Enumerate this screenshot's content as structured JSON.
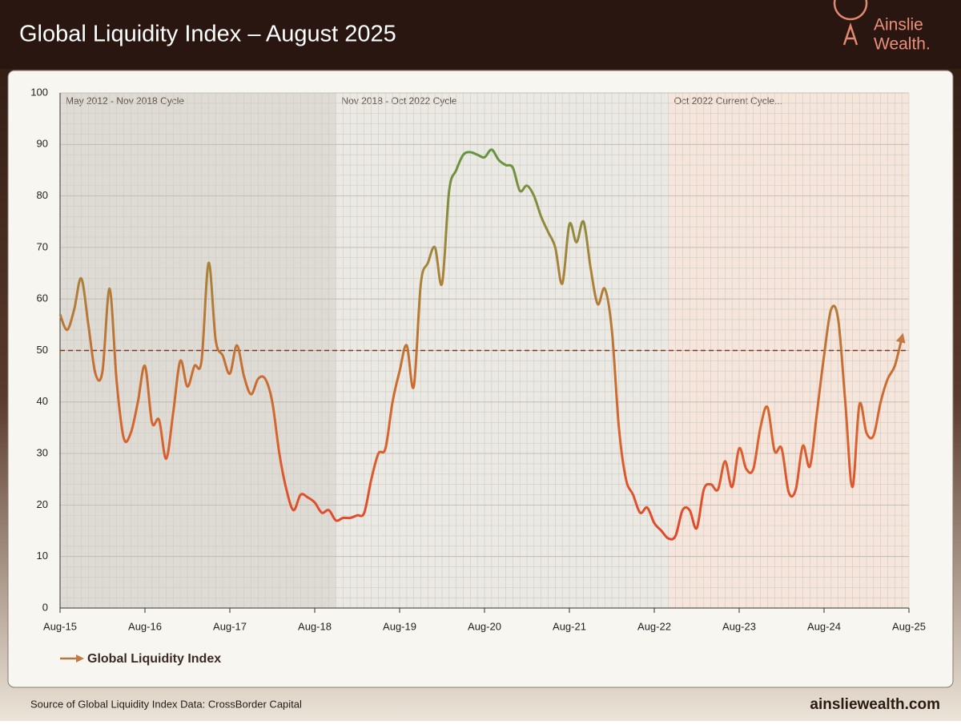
{
  "header": {
    "title": "Global Liquidity Index – August 2025",
    "logo_top": "Ainslie",
    "logo_bottom": "Wealth."
  },
  "chart_data": {
    "type": "line",
    "x": [
      "2015-08",
      "2015-09",
      "2015-10",
      "2015-11",
      "2015-12",
      "2016-01",
      "2016-02",
      "2016-03",
      "2016-04",
      "2016-05",
      "2016-06",
      "2016-07",
      "2016-08",
      "2016-09",
      "2016-10",
      "2016-11",
      "2016-12",
      "2017-01",
      "2017-02",
      "2017-03",
      "2017-04",
      "2017-05",
      "2017-06",
      "2017-07",
      "2017-08",
      "2017-09",
      "2017-10",
      "2017-11",
      "2017-12",
      "2018-01",
      "2018-02",
      "2018-03",
      "2018-04",
      "2018-05",
      "2018-06",
      "2018-07",
      "2018-08",
      "2018-09",
      "2018-10",
      "2018-11",
      "2018-12",
      "2019-01",
      "2019-02",
      "2019-03",
      "2019-04",
      "2019-05",
      "2019-06",
      "2019-07",
      "2019-08",
      "2019-09",
      "2019-10",
      "2019-11",
      "2019-12",
      "2020-01",
      "2020-02",
      "2020-03",
      "2020-04",
      "2020-05",
      "2020-06",
      "2020-07",
      "2020-08",
      "2020-09",
      "2020-10",
      "2020-11",
      "2020-12",
      "2021-01",
      "2021-02",
      "2021-03",
      "2021-04",
      "2021-05",
      "2021-06",
      "2021-07",
      "2021-08",
      "2021-09",
      "2021-10",
      "2021-11",
      "2021-12",
      "2022-01",
      "2022-02",
      "2022-03",
      "2022-04",
      "2022-05",
      "2022-06",
      "2022-07",
      "2022-08",
      "2022-09",
      "2022-10",
      "2022-11",
      "2022-12",
      "2023-01",
      "2023-02",
      "2023-03",
      "2023-04",
      "2023-05",
      "2023-06",
      "2023-07",
      "2023-08",
      "2023-09",
      "2023-10",
      "2023-11",
      "2023-12",
      "2024-01",
      "2024-02",
      "2024-03",
      "2024-04",
      "2024-05",
      "2024-06",
      "2024-07",
      "2024-08",
      "2024-09",
      "2024-10",
      "2024-11",
      "2024-12",
      "2025-01",
      "2025-02",
      "2025-03",
      "2025-04",
      "2025-05",
      "2025-06",
      "2025-07"
    ],
    "series": [
      {
        "name": "Global Liquidity Index",
        "colors": [
          "#e8322a",
          "#d9632e",
          "#a8833a",
          "#3f9f45"
        ],
        "legend_color": "#b07a45",
        "values": [
          57,
          54,
          58,
          64,
          55,
          45.5,
          46,
          62,
          44,
          33,
          34,
          40,
          47,
          36,
          36.5,
          29,
          38,
          48,
          43,
          47,
          48,
          67,
          52,
          49,
          45.5,
          51,
          45,
          41.5,
          44.5,
          44.5,
          40,
          30,
          23,
          19,
          22,
          21.5,
          20.5,
          18.5,
          19,
          17,
          17.5,
          17.5,
          18,
          18.5,
          25,
          30,
          31,
          40,
          46,
          51,
          43,
          63,
          67,
          70,
          63,
          81,
          85,
          88,
          88.5,
          88,
          87.5,
          89,
          87,
          86,
          85.5,
          81,
          82,
          80,
          76,
          73,
          70,
          63,
          74.5,
          71,
          75,
          66,
          59,
          62,
          54,
          35,
          25,
          22,
          18.5,
          19.5,
          16.5,
          15,
          13.5,
          14,
          19,
          19,
          15.5,
          23,
          24,
          23,
          28.5,
          23.5,
          31,
          27,
          27,
          35,
          39,
          30.5,
          31,
          22.5,
          23,
          31.5,
          27.5,
          38,
          49,
          58,
          56,
          40,
          23.5,
          39.5,
          34,
          33.5,
          40,
          44.5,
          47,
          52.5
        ]
      }
    ],
    "xlim": [
      "2015-08",
      "2025-08"
    ],
    "xticks": [
      {
        "value": "2015-08",
        "label": "Aug-15"
      },
      {
        "value": "2016-08",
        "label": "Aug-16"
      },
      {
        "value": "2017-08",
        "label": "Aug-17"
      },
      {
        "value": "2018-08",
        "label": "Aug-18"
      },
      {
        "value": "2019-08",
        "label": "Aug-19"
      },
      {
        "value": "2020-08",
        "label": "Aug-20"
      },
      {
        "value": "2021-08",
        "label": "Aug-21"
      },
      {
        "value": "2022-08",
        "label": "Aug-22"
      },
      {
        "value": "2023-08",
        "label": "Aug-23"
      },
      {
        "value": "2024-08",
        "label": "Aug-24"
      },
      {
        "value": "2025-08",
        "label": "Aug-25"
      }
    ],
    "ylim": [
      0,
      100
    ],
    "yticks": [
      0,
      10,
      20,
      30,
      40,
      50,
      60,
      70,
      80,
      90,
      100
    ],
    "grid": true,
    "reference_line": {
      "value": 50,
      "color": "#7a3a22"
    },
    "cycle_breaks": [
      "2018-11",
      "2022-10"
    ],
    "cycles": [
      {
        "label": "May 2012 - Nov 2018 Cycle",
        "color": "#dedbd5"
      },
      {
        "label": "Nov 2018 - Oct 2022 Cycle",
        "color": "#ebe9e3"
      },
      {
        "label": "Oct 2022 Current Cycle...",
        "color": "#f6e5db"
      }
    ]
  },
  "footer": {
    "source": "Source of Global Liquidity Index Data: CrossBorder Capital",
    "url": "ainsliewealth.com"
  }
}
